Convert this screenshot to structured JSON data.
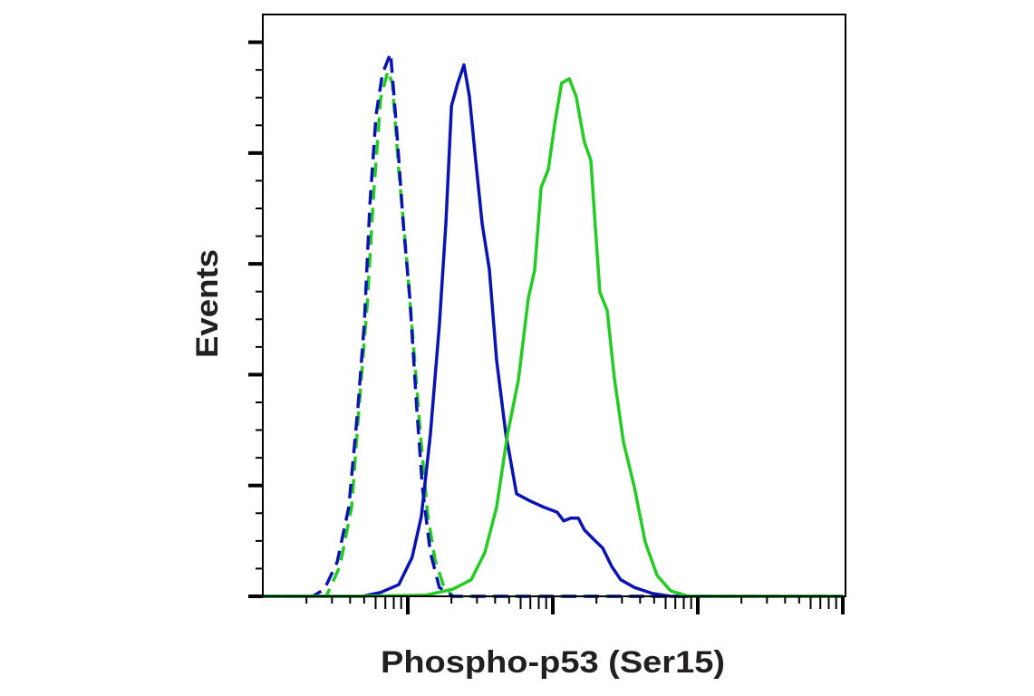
{
  "chart_data": {
    "type": "line",
    "title": "",
    "xlabel": "Phospho-p53 (Ser15)",
    "ylabel": "Events",
    "x_scale": "log",
    "xlim": [
      1,
      10000
    ],
    "ylim": [
      0,
      105
    ],
    "y_major_ticks": [
      0,
      20,
      40,
      60,
      80,
      100
    ],
    "tick_labels_shown": false,
    "grid": false,
    "legend": "none",
    "series": [
      {
        "color": "#22cc22",
        "style": "dashed",
        "x": [
          1,
          2.74,
          3.4,
          4.1,
          4.66,
          5.23,
          5.79,
          6.49,
          7.29,
          7.83,
          8.66,
          9.72,
          10.9,
          12.2,
          13.7,
          15.4,
          17.8,
          20.5,
          10000
        ],
        "y": [
          0,
          0,
          5.4,
          16.1,
          35.7,
          52.1,
          71.8,
          89.8,
          94.8,
          92.6,
          77.0,
          62.3,
          45.9,
          29.5,
          14.8,
          6.6,
          1.6,
          0,
          0
        ]
      },
      {
        "color": "#0a14b4",
        "style": "dashed",
        "x": [
          1,
          2.21,
          2.66,
          3.26,
          3.92,
          4.53,
          5.01,
          5.47,
          6.04,
          6.68,
          7.61,
          8.41,
          9.31,
          10.3,
          11.5,
          12.6,
          14.3,
          16.5,
          20.5,
          10000
        ],
        "y": [
          0,
          0,
          1.3,
          6.2,
          16.1,
          34.1,
          49.2,
          70.5,
          86.9,
          94.3,
          98.0,
          83.6,
          67.2,
          54.1,
          34.4,
          19.7,
          7.9,
          1.6,
          0,
          0
        ]
      },
      {
        "color": "#0a14b4",
        "style": "solid",
        "x": [
          1,
          4.87,
          6.5,
          8.66,
          10.7,
          12.4,
          14.3,
          16.5,
          18.3,
          20.0,
          22.1,
          24.4,
          26.6,
          29.4,
          32.6,
          36.5,
          41.0,
          47.3,
          56.2,
          69.8,
          86.6,
          107,
          119,
          133,
          150,
          165,
          191,
          221,
          255,
          294,
          365,
          487,
          649,
          10000
        ],
        "y": [
          0,
          0,
          0.7,
          2.1,
          7.0,
          14.4,
          29.2,
          48.9,
          67.2,
          88.5,
          92.6,
          95.9,
          90.2,
          78.7,
          67.2,
          59.0,
          42.6,
          29.5,
          18.5,
          17.2,
          16.1,
          15.2,
          13.6,
          14.1,
          14.1,
          12.0,
          10.3,
          8.7,
          5.4,
          3.0,
          1.6,
          0.5,
          0,
          0
        ]
      },
      {
        "color": "#22cc22",
        "style": "solid",
        "x": [
          1,
          4.22,
          13.3,
          20.5,
          27.4,
          34.0,
          41.0,
          48.7,
          57.9,
          67.8,
          75.0,
          83.0,
          93.0,
          103,
          115,
          130,
          145,
          165,
          183,
          194,
          211,
          237,
          266,
          307,
          365,
          434,
          523,
          649,
          866,
          10000
        ],
        "y": [
          0,
          0,
          0.2,
          1.3,
          3.0,
          7.9,
          16.1,
          29.2,
          39.0,
          53.8,
          58.9,
          73.8,
          77.0,
          85.2,
          92.6,
          93.4,
          90.2,
          82.0,
          78.7,
          68.9,
          54.9,
          51.6,
          39.3,
          27.9,
          19.7,
          9.8,
          3.8,
          1.0,
          0,
          0
        ]
      }
    ]
  }
}
